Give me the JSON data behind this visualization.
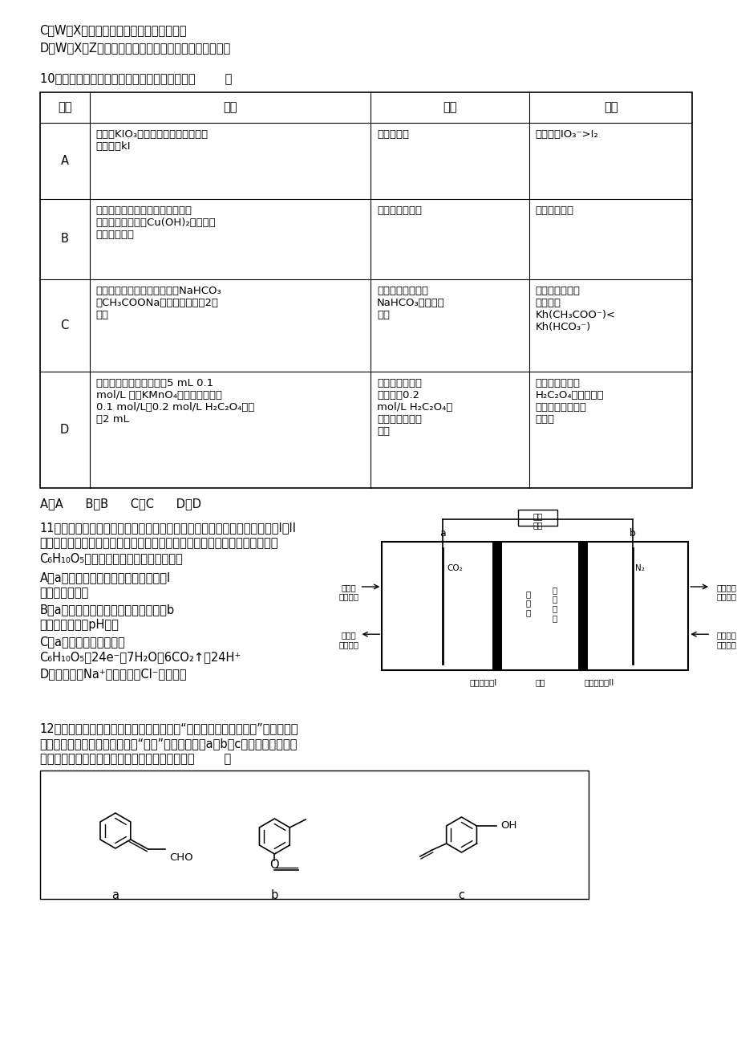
{
  "bg_color": "#ffffff",
  "line1": "C．W、X元素组成的化合物一定只含离子键",
  "line2": "D．W、X、Z三种元素组成的化合物的水溶液可能显碱性",
  "q10_title": "10．由下列实验及现象不能推出相应结论的是（        ）",
  "table_headers": [
    "选项",
    "实验",
    "现象",
    "结论"
  ],
  "row_A_col1": "A",
  "row_A_col2": "向添有KIO₃的食盐中加入淠粉溶液、\n稀盐酸及kI",
  "row_A_col3": "溶液变蓝色",
  "row_A_col4": "氧化性：IO₃⁻>I₂",
  "row_B_col1": "B",
  "row_B_col2": "淠粉溶液在硫酸存在下加热一段时\n间后，再与新制的Cu(OH)₂悬浊液混\n合，加热煮汸",
  "row_B_col3": "无红色沉淠生成",
  "row_B_col4": "淠粉没有水解",
  "row_C_col1": "C",
  "row_C_col2": "常温下，向等体积、等浓度的NaHCO₃\n和CH₃COONa溶液中分别滴加2滴\n酔酮",
  "row_C_col3": "两份溶液均变红，\nNaHCO₃溶液红色\n更深",
  "row_C_col4": "常温下的水解平\n衡常数：\nKh(CH₃COO⁻)<\nKh(HCO₃⁻)",
  "row_D_col1": "D",
  "row_D_col2": "常温时，用两支试管各匹5 mL 0.1\nmol/L 酸性KMnO₄溶液，分别加入\n0.1 mol/L和0.2 mol/L H₂C₂O₄溶液\n吅2 mL",
  "row_D_col3": "两试管溶液均褪\n色，且加0.2\nmol/L H₂C₂O₄溶\n液的试管中褪色\n更快",
  "row_D_col4": "其它条件不变，\nH₂C₂O₄溶液的浓度\n越大，化学反应速\n率越大",
  "q10_choices": "A．A      B．B      C．C      D．D",
  "q11_text1": "11．一种三室微生物燃料电池污水净化系统原理如图所示，其中离子交换膜I、II",
  "q11_text2": "分别是氯离子交换膜和钓离子交换膜中的一种，图中有机废水中的有机物可用",
  "q11_text3": "C₆H₁₀O₅表示。下列有关说法正确的是（",
  "q11_A": "A．a电极为该电池的负极，离子交换膜I",
  "q11_A2": "是钓离子交换膜",
  "q11_B": "B．a电极附近溶液的氯离子浓度增大，b",
  "q11_B2": "电极附近溶液的pH减小",
  "q11_C": "C．a电极的电极反应式为",
  "q11_C2": "C₆H₁₀O₅－24e⁻＋7H₂O＝6CO₂↑＋24H⁺",
  "q11_D": "D．中间室中Na⁺移向左室，Cl⁻移向右室",
  "q12_text1": "12．法国、美国、荷兰的三位科学家因研究“分子机器的设计与合成”获得诺贝尔",
  "q12_text2": "化学奖。轮烷是一种分子机器的“轮子”，芳香化合物a、b、c是合成轮烷的三种",
  "q12_text3": "原料，其结构如下图所示。下列说法不正确的是（        ）"
}
